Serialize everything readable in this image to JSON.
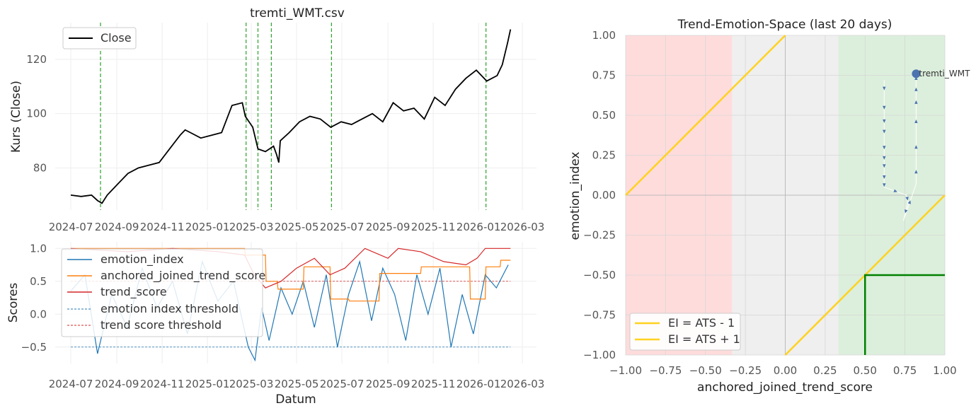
{
  "chart_data": [
    {
      "id": "price",
      "type": "line",
      "title": "tremti_WMT.csv",
      "xlabel": "",
      "ylabel": "Kurs (Close)",
      "x_range": [
        "2024-06-10",
        "2026-03-20"
      ],
      "ylim": [
        64.5,
        133.5
      ],
      "xtick_labels": [
        "2024-07",
        "2024-09",
        "2024-11",
        "2025-01",
        "2025-03",
        "2025-05",
        "2025-07",
        "2025-09",
        "2025-11",
        "2026-01",
        "2026-03"
      ],
      "ytick_labels": [
        "80",
        "100",
        "120"
      ],
      "yticks": [
        80,
        100,
        120
      ],
      "legend": {
        "position": "top-left",
        "entries": [
          "Close"
        ]
      },
      "grid": true,
      "series": [
        {
          "name": "Close",
          "color": "#000000",
          "x": [
            "2024-07-01",
            "2024-07-15",
            "2024-07-29",
            "2024-08-06",
            "2024-08-12",
            "2024-08-19",
            "2024-09-02",
            "2024-09-16",
            "2024-09-30",
            "2024-10-14",
            "2024-10-28",
            "2024-11-11",
            "2024-11-25",
            "2024-12-02",
            "2024-12-09",
            "2024-12-23",
            "2025-01-06",
            "2025-01-20",
            "2025-02-03",
            "2025-02-17",
            "2025-02-21",
            "2025-03-03",
            "2025-03-10",
            "2025-03-20",
            "2025-03-31",
            "2025-04-04",
            "2025-04-07",
            "2025-04-09",
            "2025-04-21",
            "2025-05-05",
            "2025-05-19",
            "2025-06-02",
            "2025-06-16",
            "2025-06-30",
            "2025-07-14",
            "2025-07-28",
            "2025-08-11",
            "2025-08-25",
            "2025-09-08",
            "2025-09-22",
            "2025-10-06",
            "2025-10-20",
            "2025-11-03",
            "2025-11-17",
            "2025-12-01",
            "2025-12-15",
            "2025-12-29",
            "2026-01-12",
            "2026-01-26",
            "2026-02-02",
            "2026-02-09",
            "2026-02-13"
          ],
          "values": [
            70,
            69.5,
            70,
            68,
            67,
            70,
            74,
            78,
            80,
            81,
            82,
            87,
            92,
            94,
            93,
            91,
            92,
            93,
            103,
            104,
            99,
            95,
            87,
            86,
            88,
            85,
            82,
            90,
            93,
            97,
            99,
            98,
            95,
            97,
            96,
            98,
            100,
            97,
            104,
            101,
            102,
            98,
            106,
            103,
            109,
            113,
            116,
            112,
            114,
            118,
            126,
            131
          ]
        }
      ],
      "vlines": {
        "color": "#2ca02c",
        "style": "dashed",
        "x": [
          "2024-08-10",
          "2025-02-22",
          "2025-03-10",
          "2025-03-28",
          "2025-06-17",
          "2026-01-11"
        ]
      }
    },
    {
      "id": "scores",
      "type": "line",
      "title": "",
      "xlabel": "Datum",
      "ylabel": "Scores",
      "x_range": [
        "2024-06-10",
        "2026-03-20"
      ],
      "ylim": [
        -0.75,
        1.1
      ],
      "xtick_labels": [
        "2024-07",
        "2024-09",
        "2024-11",
        "2025-01",
        "2025-03",
        "2025-05",
        "2025-07",
        "2025-09",
        "2025-11",
        "2026-01",
        "2026-03"
      ],
      "ytick_labels": [
        "−0.5",
        "0.0",
        "0.5",
        "1.0"
      ],
      "yticks": [
        -0.5,
        0.0,
        0.5,
        1.0
      ],
      "legend": {
        "position": "top-left",
        "entries": [
          "emotion_index",
          "anchored_joined_trend_score",
          "trend_score",
          "emotion index threshold",
          "trend score threshold"
        ]
      },
      "grid": true,
      "series": [
        {
          "name": "emotion_index",
          "color": "#1f77b4",
          "x": [
            "2024-07-01",
            "2024-07-20",
            "2024-08-06",
            "2024-08-25",
            "2024-09-15",
            "2024-10-05",
            "2024-10-25",
            "2024-11-15",
            "2024-12-05",
            "2024-12-25",
            "2025-01-15",
            "2025-02-05",
            "2025-02-25",
            "2025-03-06",
            "2025-03-15",
            "2025-03-25",
            "2025-04-10",
            "2025-04-25",
            "2025-05-10",
            "2025-05-25",
            "2025-06-10",
            "2025-06-25",
            "2025-07-10",
            "2025-07-25",
            "2025-08-10",
            "2025-08-25",
            "2025-09-10",
            "2025-09-25",
            "2025-10-10",
            "2025-10-25",
            "2025-11-10",
            "2025-11-25",
            "2025-12-10",
            "2025-12-25",
            "2026-01-10",
            "2026-01-25",
            "2026-02-10"
          ],
          "values": [
            0.35,
            0.6,
            -0.6,
            0.3,
            -0.2,
            0.7,
            0.1,
            0.5,
            -0.3,
            0.8,
            0.2,
            0.5,
            -0.5,
            -0.7,
            0.1,
            -0.4,
            0.4,
            0.0,
            0.5,
            -0.2,
            0.6,
            -0.5,
            0.3,
            0.8,
            -0.1,
            0.7,
            0.3,
            -0.4,
            0.6,
            0.0,
            0.7,
            -0.5,
            0.3,
            -0.3,
            0.6,
            0.4,
            0.75
          ]
        },
        {
          "name": "anchored_joined_trend_score",
          "color": "#ff7f0e",
          "x": [
            "2024-07-01",
            "2025-02-20",
            "2025-02-21",
            "2025-03-20",
            "2025-03-21",
            "2025-04-05",
            "2025-04-06",
            "2025-05-10",
            "2025-05-11",
            "2025-06-15",
            "2025-06-16",
            "2025-07-10",
            "2025-07-11",
            "2025-08-20",
            "2025-08-21",
            "2025-10-15",
            "2025-10-16",
            "2025-12-20",
            "2025-12-21",
            "2026-01-10",
            "2026-01-11",
            "2026-01-30",
            "2026-01-31",
            "2026-02-13"
          ],
          "values": [
            1.0,
            1.0,
            0.9,
            0.9,
            0.5,
            0.5,
            0.38,
            0.38,
            0.72,
            0.72,
            0.23,
            0.23,
            0.2,
            0.2,
            0.62,
            0.62,
            0.72,
            0.72,
            0.23,
            0.23,
            0.72,
            0.72,
            0.82,
            0.82
          ]
        },
        {
          "name": "trend_score",
          "color": "#d62728",
          "x": [
            "2024-07-01",
            "2024-09-15",
            "2024-11-15",
            "2025-01-15",
            "2025-02-20",
            "2025-03-05",
            "2025-03-20",
            "2025-04-10",
            "2025-05-01",
            "2025-05-25",
            "2025-06-15",
            "2025-07-05",
            "2025-08-01",
            "2025-09-01",
            "2025-09-15",
            "2025-10-15",
            "2025-11-15",
            "2025-12-15",
            "2025-12-30",
            "2026-01-10",
            "2026-02-13"
          ],
          "values": [
            1.0,
            0.95,
            1.0,
            0.95,
            0.9,
            0.6,
            0.4,
            0.5,
            0.7,
            0.85,
            0.6,
            0.7,
            1.0,
            0.85,
            1.0,
            0.95,
            0.8,
            0.75,
            0.85,
            1.0,
            1.0
          ]
        },
        {
          "name": "emotion index threshold",
          "color": "#1f77b4",
          "style": "dashed",
          "x": [
            "2024-07-01",
            "2026-02-13"
          ],
          "values": [
            -0.5,
            -0.5
          ]
        },
        {
          "name": "trend score threshold",
          "color": "#d62728",
          "style": "dashed",
          "x": [
            "2024-07-01",
            "2026-02-13"
          ],
          "values": [
            0.5,
            0.5
          ]
        }
      ]
    },
    {
      "id": "space",
      "type": "scatter",
      "title": "Trend-Emotion-Space (last 20 days)",
      "xlabel": "anchored_joined_trend_score",
      "ylabel": "emotion_index",
      "xlim": [
        -1.0,
        1.0
      ],
      "ylim": [
        -1.0,
        1.0
      ],
      "xtick_labels": [
        "−1.00",
        "−0.75",
        "−0.50",
        "−0.25",
        "0.00",
        "0.25",
        "0.50",
        "0.75",
        "1.00"
      ],
      "ytick_labels": [
        "−1.00",
        "−0.75",
        "−0.50",
        "−0.25",
        "0.00",
        "0.25",
        "0.50",
        "0.75",
        "1.00"
      ],
      "ticks": [
        -1.0,
        -0.75,
        -0.5,
        -0.25,
        0.0,
        0.25,
        0.5,
        0.75,
        1.0
      ],
      "grid": true,
      "regions": [
        {
          "x_from": -1.0,
          "x_to": -0.333,
          "color": "#ffdcdc"
        },
        {
          "x_from": -0.333,
          "x_to": 0.333,
          "color": "#efefef"
        },
        {
          "x_from": 0.333,
          "x_to": 1.0,
          "color": "#dcefdc"
        }
      ],
      "lines": [
        {
          "name": "EI = ATS - 1",
          "color": "#ffd21f",
          "slope": 1,
          "intercept": -1
        },
        {
          "name": "EI = ATS + 1",
          "color": "#ffd21f",
          "slope": 1,
          "intercept": 1
        }
      ],
      "threshold_box": {
        "color": "#008000",
        "x": 0.5,
        "y": -0.5
      },
      "path": {
        "color": "#4c72b0",
        "x": [
          0.62,
          0.62,
          0.62,
          0.62,
          0.62,
          0.62,
          0.62,
          0.62,
          0.62,
          0.62,
          0.76,
          0.77,
          0.74,
          0.82,
          0.82,
          0.82,
          0.82,
          0.82,
          0.82,
          0.82
        ],
        "y": [
          0.72,
          0.62,
          0.48,
          0.45,
          0.35,
          0.25,
          0.22,
          0.15,
          0.08,
          0.05,
          0.0,
          -0.04,
          -0.16,
          0.07,
          0.22,
          0.38,
          0.54,
          0.62,
          0.7,
          0.76
        ]
      },
      "last_point_label": "tremti_WMT",
      "legend": {
        "position": "bottom-left",
        "entries": [
          "EI = ATS - 1",
          "EI = ATS + 1"
        ]
      }
    }
  ]
}
